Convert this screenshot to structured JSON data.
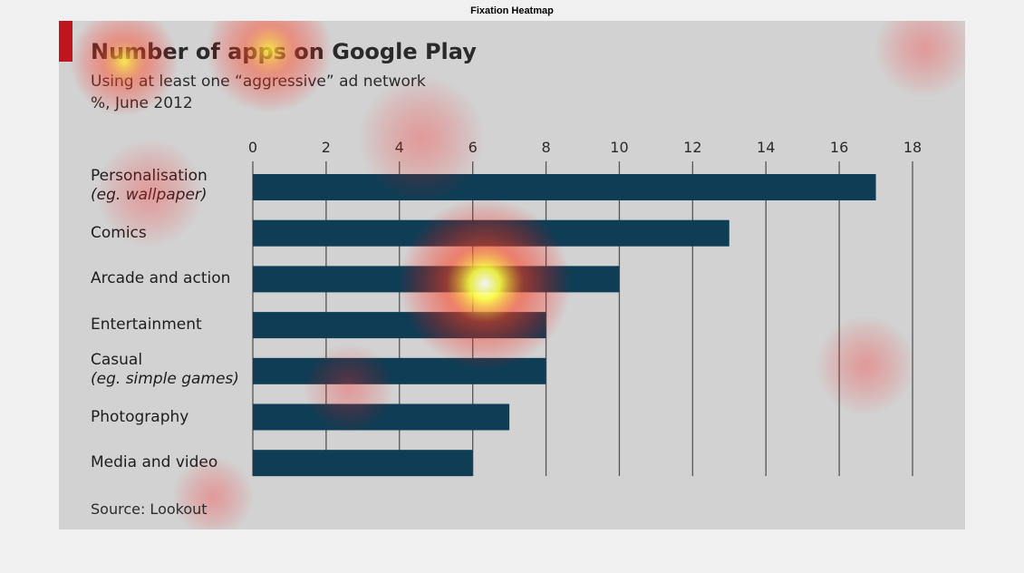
{
  "header": {
    "title": "Fixation Heatmap"
  },
  "chart": {
    "title": "Number of apps on Google Play",
    "subtitle": "Using at least one “aggressive” ad network",
    "unit": "%, June 2012",
    "source": "Source: Lookout"
  },
  "chart_data": {
    "type": "bar",
    "orientation": "horizontal",
    "categories": [
      {
        "label": "Personalisation",
        "sub": "(eg. wallpaper)"
      },
      {
        "label": "Comics",
        "sub": ""
      },
      {
        "label": "Arcade and action",
        "sub": ""
      },
      {
        "label": "Entertainment",
        "sub": ""
      },
      {
        "label": "Casual",
        "sub": "(eg. simple games)"
      },
      {
        "label": "Photography",
        "sub": ""
      },
      {
        "label": "Media and video",
        "sub": ""
      }
    ],
    "values": [
      17,
      13,
      10,
      8,
      8,
      7,
      6
    ],
    "xlim": [
      0,
      18
    ],
    "xticks": [
      "0",
      "2",
      "4",
      "6",
      "8",
      "10",
      "12",
      "14",
      "16",
      "18"
    ],
    "grid": true,
    "bar_color": "#0e3d55"
  },
  "colors": {
    "accent": "#c0141f",
    "background": "#d2d2d2",
    "gridline": "#555555"
  }
}
